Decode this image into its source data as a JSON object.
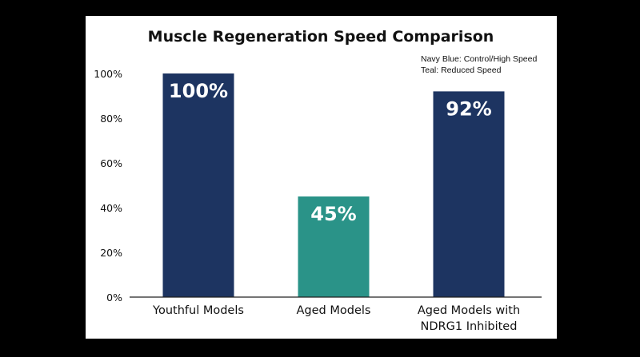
{
  "chart_data": {
    "type": "bar",
    "title": "Muscle Regeneration Speed Comparison",
    "categories": [
      [
        "Youthful Models"
      ],
      [
        "Aged Models"
      ],
      [
        "Aged Models with",
        "NDRG1 Inhibited"
      ]
    ],
    "values": [
      100,
      45,
      92
    ],
    "value_labels": [
      "100%",
      "45%",
      "92%"
    ],
    "bar_colors": [
      "#1d3461",
      "#2a9388",
      "#1d3461"
    ],
    "ylim": [
      0,
      100
    ],
    "yticks": [
      0,
      20,
      40,
      60,
      80,
      100
    ],
    "ytick_labels": [
      "0%",
      "20%",
      "40%",
      "60%",
      "80%",
      "100%"
    ],
    "legend": {
      "placement": "top-right",
      "entries": [
        "Navy Blue: Control/High Speed",
        "Teal: Reduced Speed"
      ]
    },
    "grid": false
  },
  "colors": {
    "navy": "#1d3461",
    "teal": "#2a9388",
    "background": "#000000",
    "panel": "#ffffff"
  }
}
